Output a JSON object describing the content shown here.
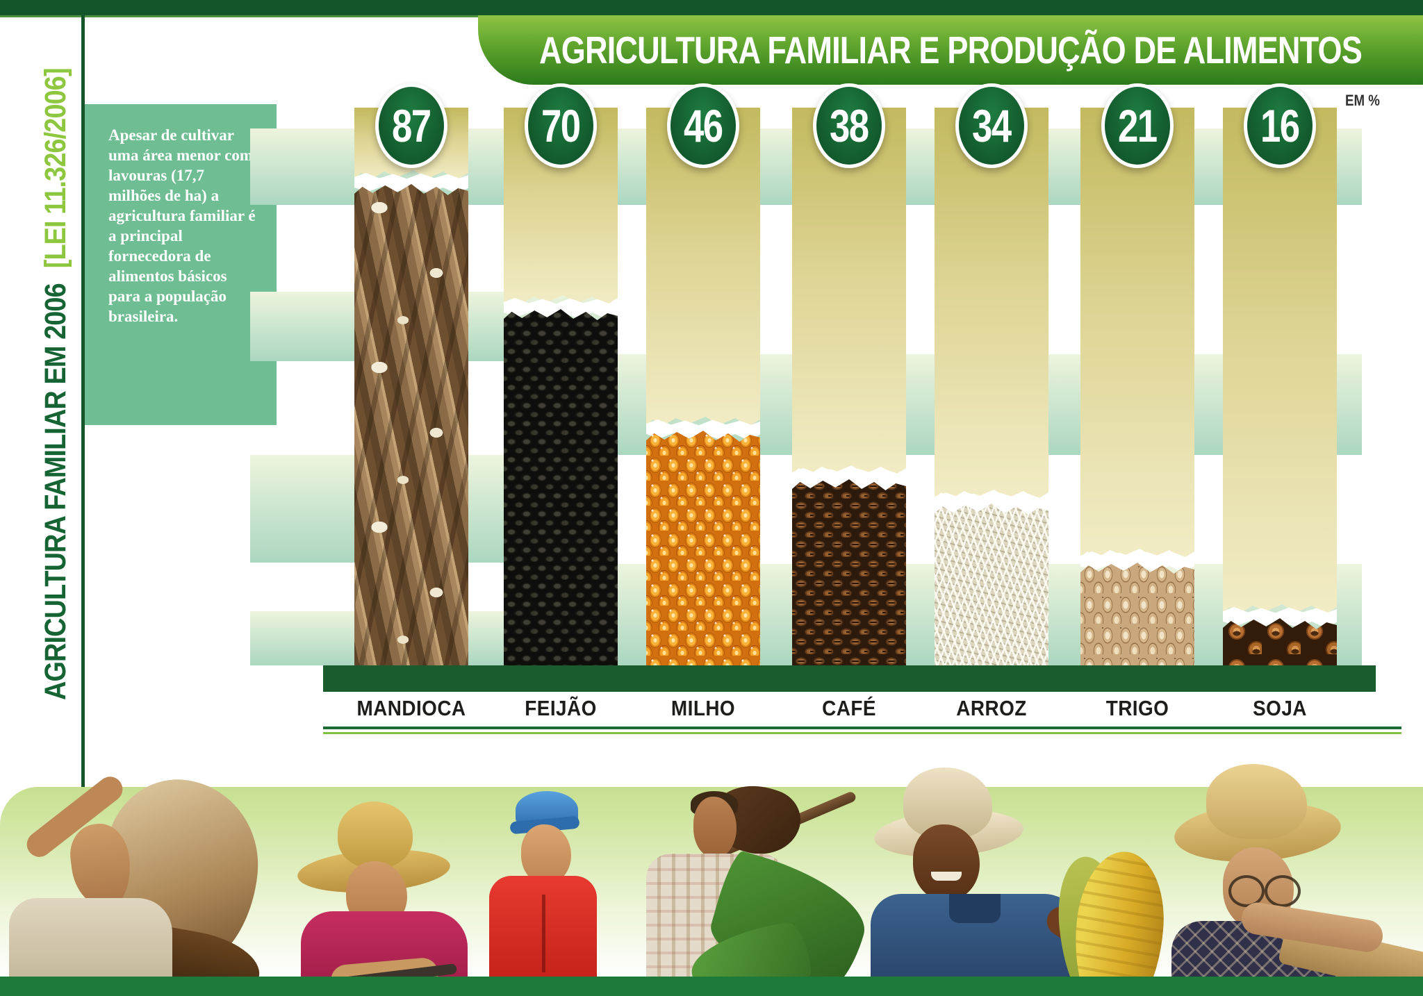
{
  "title_banner": {
    "text": "AGRICULTURA FAMILIAR E PRODUÇÃO DE ALIMENTOS"
  },
  "sidebar": {
    "vertical_title_main": "AGRICULTURA FAMILIAR EM 2006",
    "vertical_title_law": "[LEI 11.326/2006]",
    "description": "Apesar de cultivar uma área menor com lavouras (17,7 milhões de ha) a agricultura familiar é a principal fornecedora de alimentos básicos para a população brasileira."
  },
  "chart_data": {
    "type": "bar",
    "title": "AGRICULTURA FAMILIAR E PRODUÇÃO DE ALIMENTOS",
    "unit": "EM %",
    "categories": [
      "MANDIOCA",
      "FEIJÃO",
      "MILHO",
      "CAFÉ",
      "ARROZ",
      "TRIGO",
      "SOJA"
    ],
    "values": [
      87,
      70,
      46,
      38,
      34,
      21,
      16
    ],
    "ylim": [
      0,
      100
    ],
    "grid": "decorative pale-green horizontal bands",
    "legend_position": "none",
    "bar_textures": [
      "cassava-roots",
      "black-beans",
      "corn-kernels",
      "coffee-beans",
      "rice-grains",
      "wheat-grains",
      "soybeans"
    ]
  },
  "footer": {
    "photos": [
      "elderly-farmer-carrying-sack",
      "farmer-straw-hat",
      "boy-blue-cap",
      "farmer-with-hoe",
      "farmer-white-hat-blue-polo",
      "elderly-woman-with-cacao"
    ]
  },
  "colors": {
    "dark_green": "#14552a",
    "banner_green_light": "#8ec445",
    "banner_green_dark": "#2d7a1b",
    "accent_light_green": "#8dc63f",
    "sidebar_text_green": "#166434",
    "desc_box_green": "#6fbe93",
    "khaki_top": "#c3b95f",
    "khaki_bottom": "#f2ecc6",
    "stripe_top": "#edf4de",
    "stripe_bottom": "#abd7c0",
    "base_bar_green": "#1b5c2f",
    "footer_green": "#1d7a38",
    "label_color": "#1d1d1b"
  }
}
